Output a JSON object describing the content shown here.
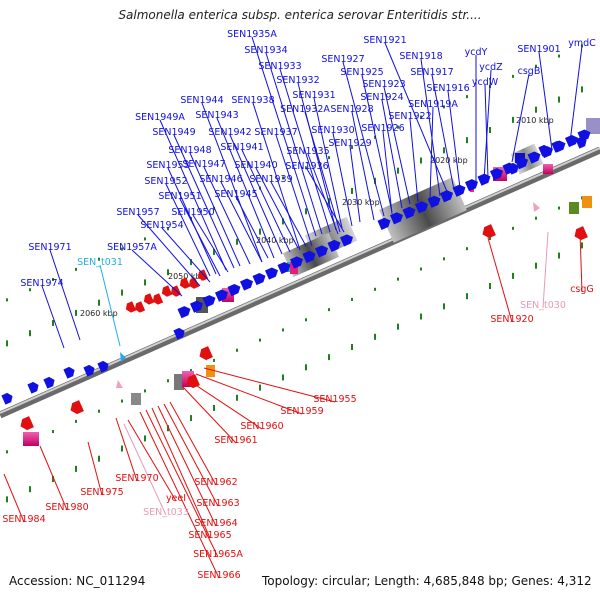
{
  "title": "Salmonella enterica subsp. enterica serovar Enteritidis str....",
  "accession": "Accession: NC_011294",
  "summary": "Topology: circular; Length: 4,685,848 bp; Genes: 4,312",
  "colors": {
    "forward": "#1010e0",
    "reverse": "#e01010",
    "trna": "#e060a0",
    "trna_label": "#e89ab8",
    "cyan": "#20b0e0",
    "backbone": "#707070",
    "grey_dark": "#606060",
    "grey_light": "#c8c8c8",
    "dots": "#208020"
  },
  "kbp_ticks": [
    "2010 kbp",
    "2020 kbp",
    "2030 kbp",
    "2040 kbp",
    "2050 kbp",
    "2060 kbp"
  ],
  "forward_labels": [
    "SEN1935A",
    "SEN1934",
    "SEN1933",
    "SEN1932",
    "SEN1931",
    "SEN1932A",
    "SEN1930",
    "SEN1935",
    "SEN1936",
    "SEN1929",
    "SEN1927",
    "SEN1925",
    "SEN1928",
    "SEN1924",
    "SEN1923",
    "SEN1926",
    "SEN1922",
    "SEN1919A",
    "SEN1921",
    "SEN1918",
    "SEN1917",
    "SEN1916",
    "ycdY",
    "ycdZ",
    "ycdW",
    "csgB",
    "SEN1901",
    "ymdC",
    "SEN1944",
    "SEN1938",
    "SEN1943",
    "SEN1949A",
    "SEN1942",
    "SEN1949",
    "SEN1941",
    "SEN1937",
    "SEN1948",
    "SEN1947",
    "SEN1940",
    "SEN1953",
    "SEN1946",
    "SEN1939",
    "SEN1952",
    "SEN1945",
    "SEN1951",
    "SEN1950",
    "SEN1957",
    "SEN1954",
    "SEN1957A",
    "SEN1971",
    "SEN1974"
  ],
  "cyan_labels": [
    "SEN_t031"
  ],
  "reverse_labels": [
    "SEN1955",
    "SEN1959",
    "SEN1960",
    "SEN1961",
    "SEN1962",
    "SEN1963",
    "SEN1964",
    "SEN1965",
    "SEN1965A",
    "SEN1966",
    "SEN1970",
    "SEN1975",
    "SEN1980",
    "SEN1984",
    "SEN1920",
    "csgG",
    "yeeI"
  ],
  "trna_labels": [
    "SEN_t030",
    "SEN_t033"
  ]
}
